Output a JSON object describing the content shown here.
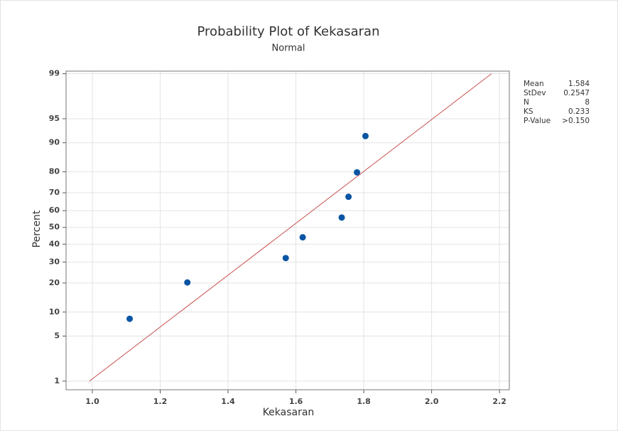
{
  "chart_data": {
    "type": "scatter",
    "title": "Probability Plot of Kekasaran",
    "subtitle": "Normal",
    "x_label": "Kekasaran",
    "y_label": "Percent",
    "yscale": "normal-probability",
    "grid": true,
    "color": "#0a55a3",
    "x": [
      1.11,
      1.28,
      1.57,
      1.62,
      1.735,
      1.755,
      1.78,
      1.805
    ],
    "values": [
      8.33,
      20.24,
      32.14,
      44.05,
      55.95,
      67.86,
      79.76,
      91.67
    ],
    "fit_line": {
      "color": "#c8524f",
      "x": [
        0.9915,
        2.1765
      ],
      "values": [
        1,
        99
      ]
    },
    "xlim": [
      0.9225,
      2.229
    ],
    "ylim": [
      0.7,
      99.1
    ],
    "xticks": [
      {
        "value": 1,
        "label": "1.0"
      },
      1.2,
      1.4,
      1.6,
      1.8,
      {
        "value": 2,
        "label": "2.0"
      },
      2.2
    ],
    "yticks": [
      1,
      5,
      10,
      20,
      30,
      40,
      50,
      60,
      70,
      80,
      90,
      95,
      99
    ],
    "stats": [
      {
        "label": "Mean",
        "value": "1.584"
      },
      {
        "label": "StDev",
        "value": "0.2547"
      },
      {
        "label": "N",
        "value": "8"
      },
      {
        "label": "KS",
        "value": "0.233"
      },
      {
        "label": "P-Value",
        "value": ">0.150"
      }
    ]
  }
}
